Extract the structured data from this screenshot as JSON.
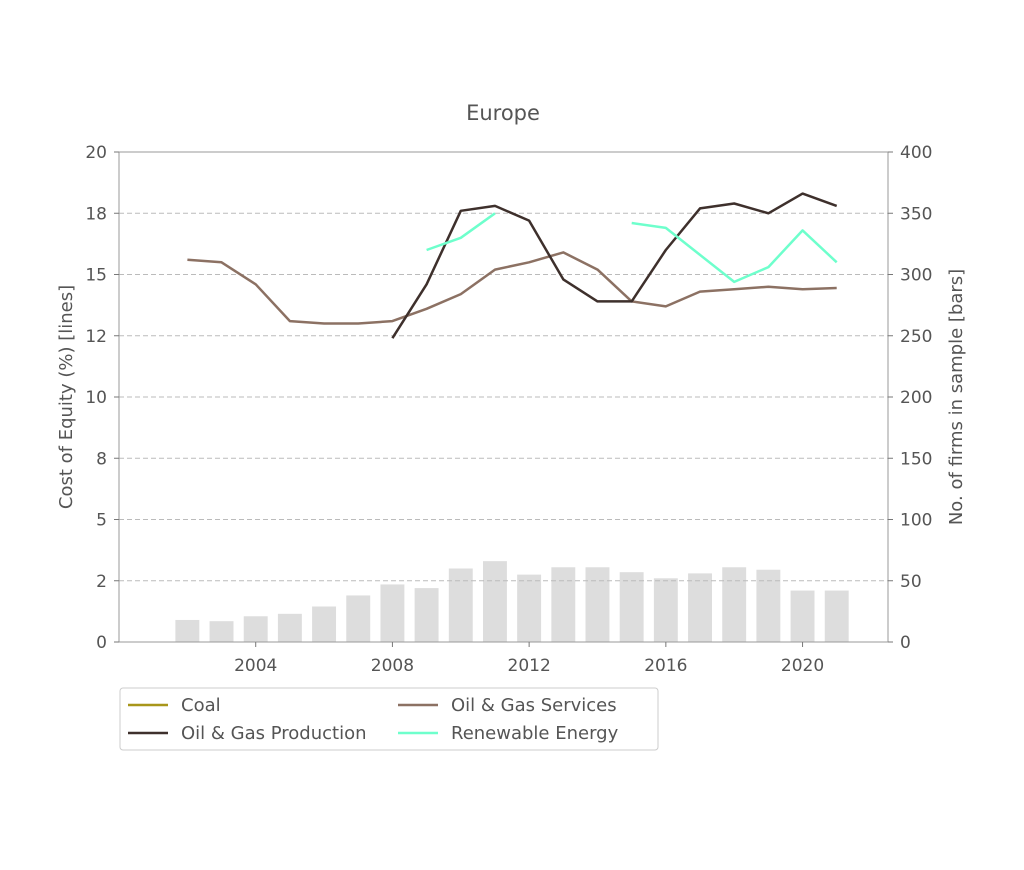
{
  "chart_data": {
    "type": "line",
    "title": "Europe",
    "xlabel": "",
    "ylabel": "Cost of Equity (%) [lines]",
    "y2label": "No. of firms in sample [bars]",
    "xlim": [
      2000,
      2022.5
    ],
    "ylim": [
      0,
      20
    ],
    "y2lim": [
      0,
      400
    ],
    "x_ticks": [
      "2004",
      "2008",
      "2012",
      "2016",
      "2020"
    ],
    "y_ticks": [
      "0",
      "2",
      "5",
      "8",
      "10",
      "12",
      "15",
      "18",
      "20"
    ],
    "y2_ticks": [
      "0",
      "50",
      "100",
      "150",
      "200",
      "250",
      "300",
      "350",
      "400"
    ],
    "grid": "horizontal dashed",
    "legend_position": "bottom-left",
    "bars": {
      "axis": "right",
      "color": "#dddddd",
      "x": [
        2002,
        2003,
        2004,
        2005,
        2006,
        2007,
        2008,
        2009,
        2010,
        2011,
        2012,
        2013,
        2014,
        2015,
        2016,
        2017,
        2018,
        2019,
        2020,
        2021
      ],
      "values": [
        18,
        17,
        21,
        23,
        29,
        38,
        47,
        44,
        60,
        66,
        55,
        61,
        61,
        57,
        52,
        56,
        61,
        59,
        42,
        42
      ]
    },
    "series": [
      {
        "name": "Coal",
        "color": "#a8961a",
        "x": [],
        "values": []
      },
      {
        "name": "Oil & Gas Services",
        "color": "#8c7163",
        "x": [
          2002,
          2003,
          2004,
          2005,
          2006,
          2007,
          2008,
          2009,
          2010,
          2011,
          2012,
          2013,
          2014,
          2015,
          2016,
          2017,
          2018,
          2019,
          2020,
          2021
        ],
        "values": [
          15.6,
          15.5,
          14.6,
          13.1,
          13.0,
          13.0,
          13.1,
          13.6,
          14.2,
          15.2,
          15.5,
          15.9,
          15.2,
          13.9,
          13.7,
          14.3,
          14.4,
          14.5,
          14.4,
          14.45
        ]
      },
      {
        "name": "Oil & Gas Production",
        "color": "#3e302c",
        "x": [
          2008,
          2009,
          2010,
          2011,
          2012,
          2013,
          2014,
          2015,
          2016,
          2017,
          2018,
          2019,
          2020,
          2021
        ],
        "values": [
          12.4,
          14.6,
          17.6,
          17.8,
          17.2,
          14.8,
          13.9,
          13.9,
          16.0,
          17.7,
          17.9,
          17.5,
          18.3,
          17.8
        ]
      },
      {
        "name": "Renewable Energy",
        "color": "#6effcc",
        "x": [
          2009,
          2010,
          2011,
          2015,
          2016,
          2017,
          2018,
          2019,
          2020,
          2021
        ],
        "values": [
          16.0,
          16.5,
          17.5,
          17.1,
          16.9,
          15.8,
          14.7,
          15.3,
          16.8,
          15.5
        ]
      }
    ]
  }
}
